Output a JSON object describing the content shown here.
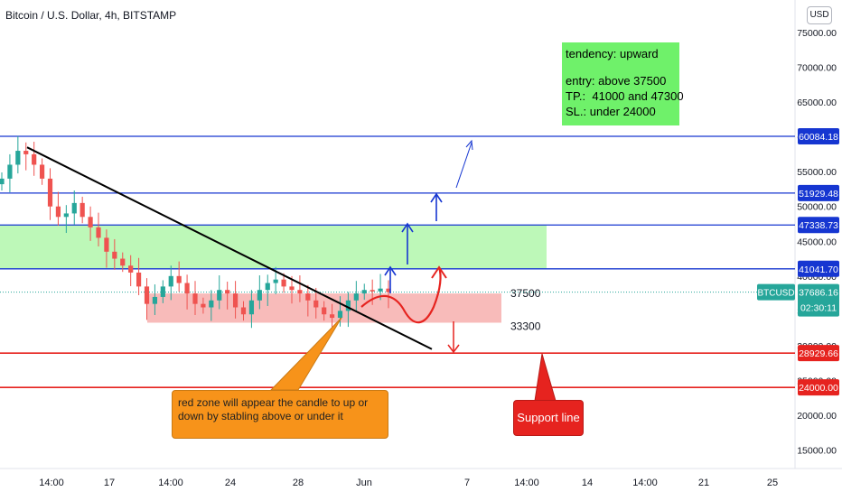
{
  "header": {
    "title": "Bitcoin / U.S. Dollar, 4h, BITSTAMP",
    "currency_button": "USD"
  },
  "chart_data": {
    "type": "line",
    "title": "Bitcoin / U.S. Dollar, 4h, BITSTAMP",
    "xlabel": "",
    "ylabel": "",
    "ylim": [
      12000,
      78000
    ],
    "x_ticks": [
      "14:00",
      "17",
      "14:00",
      "24",
      "28",
      "Jun",
      "7",
      "14:00",
      "14",
      "14:00",
      "21",
      "25"
    ],
    "y_ticks": [
      75000,
      70000,
      65000,
      60000,
      55000,
      50000,
      45000,
      40000,
      35000,
      30000,
      25000,
      20000,
      15000
    ],
    "y_tick_labels": [
      "75000.00",
      "70000.00",
      "65000.00",
      "60000.00",
      "55000.00",
      "50000.00",
      "45000.00",
      "40000.00",
      "35000.00",
      "30000.00",
      "25000.00",
      "20000.00",
      "15000.00"
    ],
    "series": [
      {
        "values": [
          54000,
          56000,
          58000,
          57500,
          56000,
          54000,
          50000,
          48500,
          49000,
          50500,
          48500,
          47000,
          45500,
          43500,
          42500,
          41500,
          40500,
          38500,
          36000,
          37000,
          38500,
          40000,
          39000,
          37500,
          36000,
          35500,
          36500,
          38000,
          37500,
          35500,
          34500,
          36500,
          38000,
          39000,
          39500,
          38500,
          38000,
          37500,
          36500,
          35500,
          34500,
          34000,
          35000,
          36500,
          37500,
          38000,
          37800,
          38200,
          37686
        ]
      }
    ],
    "levels": [
      {
        "value": 60084.18,
        "label": "60084.18",
        "color": "#1636d1"
      },
      {
        "value": 51929.48,
        "label": "51929.48",
        "color": "#1636d1"
      },
      {
        "value": 47338.73,
        "label": "47338.73",
        "color": "#1636d1"
      },
      {
        "value": 41041.7,
        "label": "41041.70",
        "color": "#1636d1"
      },
      {
        "value": 28929.66,
        "label": "28929.66",
        "color": "#e6231f"
      },
      {
        "value": 24000.0,
        "label": "24000.00",
        "color": "#e6231f"
      }
    ],
    "current_price": {
      "symbol": "BTCUSD",
      "value": "37686.16",
      "countdown": "02:30:11",
      "color": "#26a69a"
    },
    "zone_labels": [
      {
        "text": "37500",
        "value": 37500
      },
      {
        "text": "33300",
        "value": 33300
      }
    ],
    "green_zone": [
      41041.7,
      47338.73
    ],
    "red_zone": [
      33300,
      37500
    ],
    "trendline": {
      "from": 58500,
      "to": 29500
    },
    "grid": false,
    "legend": "none",
    "colors": {
      "up": "#26a69a",
      "down": "#ef5350",
      "blue_level": "#1636d1",
      "red_level": "#e6231f",
      "green_zone": "#b6f7b0",
      "red_zone": "#f7b4b2"
    }
  },
  "annotations": {
    "info_box": {
      "tendency": "tendency: upward",
      "entry": "entry: above 37500",
      "tp": "TP.:  41000 and 47300",
      "sl": "SL.: under 24000"
    },
    "callout_orange": "red zone will appear the candle to up or down by stabling above or under it",
    "callout_red": "Support line"
  }
}
